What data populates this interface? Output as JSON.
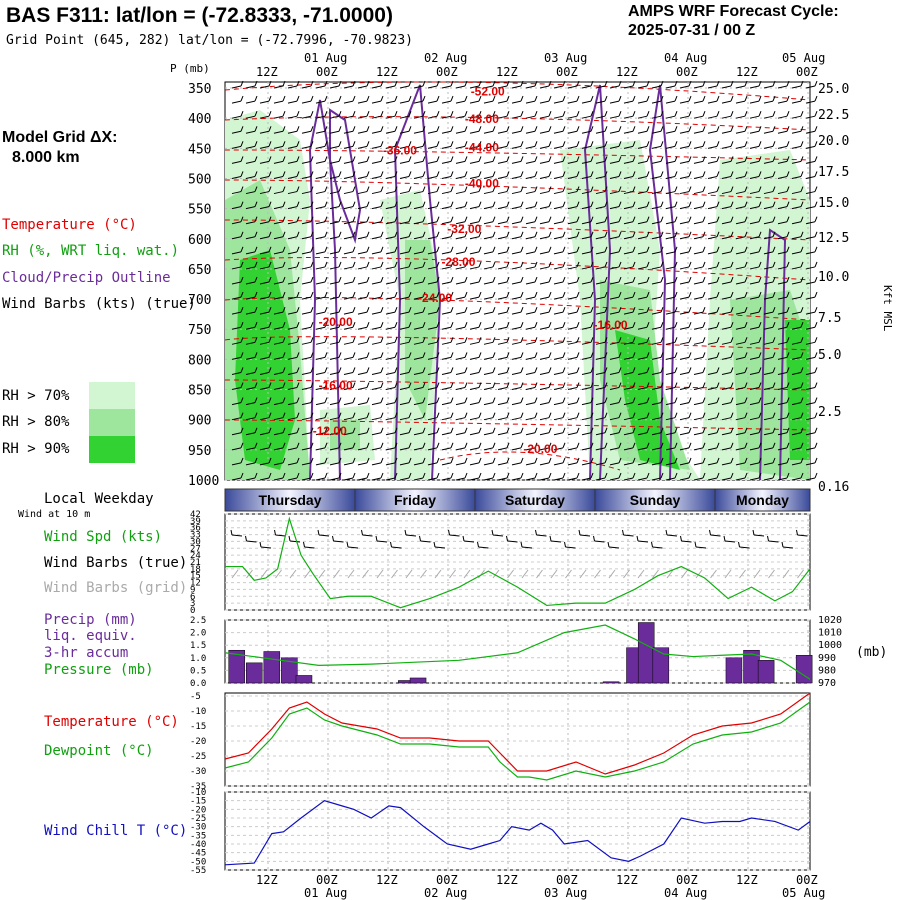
{
  "header": {
    "title": "BAS F311:  lat/lon = (-72.8333, -71.0000)",
    "subtitle": "Grid Point (645, 282) lat/lon = (-72.7996, -70.9823)",
    "cycle_line1": "AMPS WRF Forecast Cycle:",
    "cycle_line2": "2025-07-31 / 00  Z",
    "grid_dx_line1": "Model Grid ΔX:",
    "grid_dx_line2": "8.000 km"
  },
  "legend": {
    "temperature": "Temperature (°C)",
    "rh": "RH (%, WRT liq. wat.)",
    "cloud": "Cloud/Precip Outline",
    "wind": "Wind Barbs (kts) (true)",
    "rh70": "RH > 70%",
    "rh80": "RH > 80%",
    "rh90": "RH > 90%",
    "colors": {
      "rh70": "#d2f5d2",
      "rh80": "#9ee69e",
      "rh90": "#32d232",
      "temp": "#e00000",
      "cloud": "#6a2c9a",
      "wind10": "#10b010",
      "dew": "#10b010",
      "chill": "#1010c0",
      "precip": "#6a2c9a",
      "pressure": "#10b010"
    }
  },
  "time_axis": {
    "top_hours": [
      "12Z",
      "00Z",
      "12Z",
      "00Z",
      "12Z",
      "00Z",
      "12Z",
      "00Z",
      "12Z",
      "00Z"
    ],
    "dates": [
      "01 Aug",
      "02 Aug",
      "03 Aug",
      "04 Aug",
      "05 Aug"
    ],
    "weekdays": [
      "Thursday",
      "Friday",
      "Saturday",
      "Sunday",
      "Monday"
    ],
    "weekday_title": "Local Weekday"
  },
  "chart_data": [
    {
      "type": "heatmap",
      "title": "",
      "ylabel": "P (mb)",
      "y2label": "Kft MSL",
      "y_ticks": [
        350,
        400,
        450,
        500,
        550,
        600,
        650,
        700,
        750,
        800,
        850,
        900,
        950,
        1000
      ],
      "y2_ticks": [
        "25.0",
        "22.5",
        "20.0",
        "17.5",
        "15.0",
        "12.5",
        "10.0",
        "7.5",
        "5.0",
        "2.5",
        "0.16"
      ],
      "ylim": [
        1000,
        340
      ],
      "temperature_labels": [
        {
          "text": "-52.00",
          "t": 0.42,
          "p": 362
        },
        {
          "text": "-48.00",
          "t": 0.41,
          "p": 408
        },
        {
          "text": "-44.00",
          "t": 0.41,
          "p": 455
        },
        {
          "text": "-36.00",
          "t": 0.27,
          "p": 460
        },
        {
          "text": "-40.00",
          "t": 0.41,
          "p": 515
        },
        {
          "text": "-32.00",
          "t": 0.38,
          "p": 590
        },
        {
          "text": "-28.00",
          "t": 0.37,
          "p": 645
        },
        {
          "text": "-24.00",
          "t": 0.33,
          "p": 705
        },
        {
          "text": "-20.00",
          "t": 0.16,
          "p": 745
        },
        {
          "text": "-16.00",
          "t": 0.63,
          "p": 750
        },
        {
          "text": "-16.00",
          "t": 0.16,
          "p": 850
        },
        {
          "text": "-12.00",
          "t": 0.15,
          "p": 925
        },
        {
          "text": "-20.00",
          "t": 0.51,
          "p": 955
        }
      ]
    },
    {
      "type": "line",
      "title": "",
      "label": "Wind Spd (kts)",
      "label2": "Wind Barbs (true)",
      "label3": "Wind Barbs (grid)",
      "note": "Wind at 10 m",
      "y_ticks": [
        0,
        3,
        6,
        9,
        12,
        15,
        18,
        21,
        24,
        27,
        30,
        33,
        36,
        39,
        42
      ],
      "ylim": [
        0,
        42
      ],
      "x": [
        0,
        0.03,
        0.05,
        0.07,
        0.09,
        0.11,
        0.13,
        0.15,
        0.18,
        0.21,
        0.25,
        0.3,
        0.35,
        0.4,
        0.45,
        0.5,
        0.55,
        0.6,
        0.65,
        0.7,
        0.74,
        0.78,
        0.82,
        0.86,
        0.9,
        0.94,
        0.97,
        1.0
      ],
      "values": [
        19,
        19,
        13,
        14,
        18,
        40,
        24,
        16,
        5,
        6,
        6,
        1,
        5,
        10,
        17,
        10,
        2,
        3,
        3,
        9,
        15,
        19,
        14,
        5,
        10,
        4,
        8,
        18
      ]
    },
    {
      "type": "bar",
      "title": "",
      "label1": "Precip (mm)",
      "label2": "liq. equiv.",
      "label3": "3-hr accum",
      "label4": "Pressure (mb)",
      "y_ticks": [
        "0.0",
        "0.5",
        "1.0",
        "1.5",
        "2.0",
        "2.5"
      ],
      "y2_ticks": [
        "970",
        "980",
        "990",
        "1000",
        "1010",
        "1020"
      ],
      "ylim": [
        0,
        2.5
      ],
      "y2lim": [
        970,
        1020
      ],
      "y2label": "(mb)",
      "bars": [
        {
          "t": 0.02,
          "v": 1.3
        },
        {
          "t": 0.05,
          "v": 0.8
        },
        {
          "t": 0.08,
          "v": 1.25
        },
        {
          "t": 0.11,
          "v": 1.0
        },
        {
          "t": 0.135,
          "v": 0.3
        },
        {
          "t": 0.31,
          "v": 0.1
        },
        {
          "t": 0.33,
          "v": 0.2
        },
        {
          "t": 0.66,
          "v": 0.05
        },
        {
          "t": 0.7,
          "v": 1.4
        },
        {
          "t": 0.72,
          "v": 2.4
        },
        {
          "t": 0.745,
          "v": 1.4
        },
        {
          "t": 0.87,
          "v": 1.0
        },
        {
          "t": 0.9,
          "v": 1.3
        },
        {
          "t": 0.925,
          "v": 0.9
        },
        {
          "t": 0.99,
          "v": 1.1
        }
      ],
      "pressure": {
        "x": [
          0,
          0.08,
          0.16,
          0.25,
          0.35,
          0.4,
          0.5,
          0.58,
          0.65,
          0.7,
          0.75,
          0.8,
          0.85,
          0.9,
          0.95,
          1.0
        ],
        "values": [
          994,
          989,
          984,
          985,
          987,
          988,
          994,
          1010,
          1016,
          1005,
          993,
          991,
          992,
          993,
          988,
          973
        ]
      }
    },
    {
      "type": "line",
      "title": "",
      "label1": "Temperature (°C)",
      "label2": "Dewpoint (°C)",
      "y_ticks": [
        -35,
        -30,
        -25,
        -20,
        -15,
        -10,
        -5
      ],
      "ylim": [
        -35,
        -4
      ],
      "x": [
        0,
        0.04,
        0.08,
        0.11,
        0.14,
        0.17,
        0.2,
        0.26,
        0.3,
        0.35,
        0.4,
        0.45,
        0.47,
        0.5,
        0.52,
        0.55,
        0.6,
        0.65,
        0.7,
        0.75,
        0.8,
        0.85,
        0.9,
        0.95,
        1.0
      ],
      "temperature": [
        -26,
        -24,
        -16,
        -9,
        -7,
        -11,
        -14,
        -16,
        -19,
        -19,
        -20,
        -20,
        -24,
        -30,
        -30,
        -30,
        -27,
        -31,
        -28,
        -24,
        -18,
        -15,
        -14,
        -11,
        -4
      ],
      "dewpoint": [
        -29,
        -27,
        -19,
        -11,
        -9,
        -13,
        -15,
        -18,
        -21,
        -21,
        -22,
        -22,
        -27,
        -32,
        -32,
        -33,
        -30,
        -32,
        -30,
        -27,
        -21,
        -18,
        -17,
        -14,
        -7
      ]
    },
    {
      "type": "line",
      "title": "",
      "label": "Wind Chill T (°C)",
      "y_ticks": [
        -55,
        -50,
        -45,
        -40,
        -35,
        -30,
        -25,
        -20,
        -15,
        -10
      ],
      "ylim": [
        -55,
        -10
      ],
      "x": [
        0,
        0.05,
        0.08,
        0.1,
        0.13,
        0.17,
        0.2,
        0.22,
        0.25,
        0.28,
        0.3,
        0.34,
        0.38,
        0.42,
        0.45,
        0.47,
        0.49,
        0.52,
        0.54,
        0.56,
        0.58,
        0.62,
        0.66,
        0.69,
        0.71,
        0.75,
        0.78,
        0.82,
        0.85,
        0.88,
        0.9,
        0.94,
        0.98,
        1.0
      ],
      "values": [
        -52,
        -51,
        -34,
        -33,
        -25,
        -15,
        -18,
        -20,
        -25,
        -18,
        -19,
        -30,
        -40,
        -43,
        -40,
        -38,
        -30,
        -32,
        -28,
        -32,
        -40,
        -38,
        -48,
        -50,
        -47,
        -40,
        -25,
        -28,
        -27,
        -27,
        -25,
        -27,
        -32,
        -27
      ]
    }
  ]
}
